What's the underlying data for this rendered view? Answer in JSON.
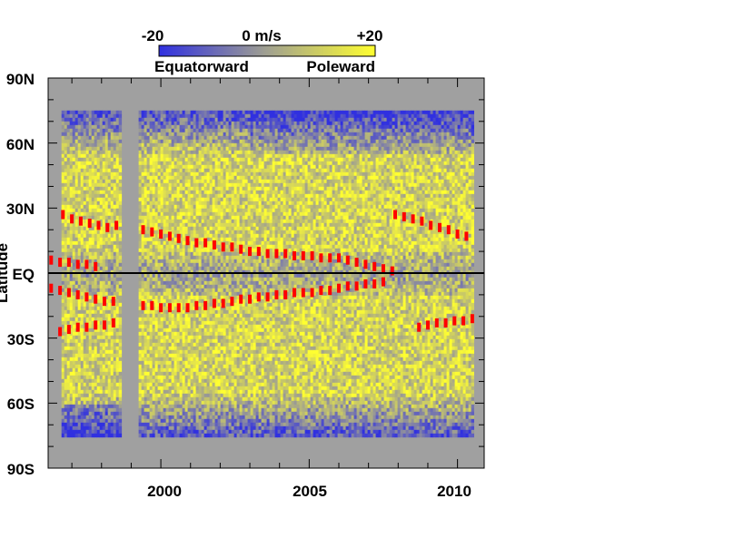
{
  "chart_data": {
    "type": "heatmap",
    "title": "",
    "xlabel": "",
    "ylabel": "Latitude",
    "xlim": [
      1996.2,
      2010.9
    ],
    "ylim": [
      -90,
      90
    ],
    "x_ticks": [
      {
        "value": 2000,
        "label": "2000"
      },
      {
        "value": 2005,
        "label": "2005"
      },
      {
        "value": 2010,
        "label": "2010"
      }
    ],
    "y_ticks": [
      {
        "value": 90,
        "label": "90N"
      },
      {
        "value": 60,
        "label": "60N"
      },
      {
        "value": 30,
        "label": "30N"
      },
      {
        "value": 0,
        "label": "EQ"
      },
      {
        "value": -30,
        "label": "30S"
      },
      {
        "value": -60,
        "label": "60S"
      },
      {
        "value": -90,
        "label": "90S"
      }
    ],
    "colorbar": {
      "min_label": "-20",
      "mid_label": "0 m/s",
      "max_label": "+20",
      "left_caption": "Equatorward",
      "right_caption": "Poleward",
      "range": [
        -20,
        20
      ],
      "colors": [
        "#3030e0",
        "#a0a090",
        "#ffff30"
      ]
    },
    "no_data_color": "#a0a0a0",
    "data_coverage": {
      "lat_range": [
        -75,
        75
      ],
      "segments": [
        [
          1996.65,
          1998.6
        ],
        [
          1999.25,
          2010.55
        ]
      ],
      "gap": [
        1998.6,
        1999.25
      ]
    },
    "series": [
      {
        "name": "",
        "color": "#ff0000",
        "marker": "dash",
        "x": [
          1996.7,
          1997.0,
          1997.3,
          1997.6,
          1997.9,
          1998.2,
          1998.5,
          1999.4,
          1999.7,
          2000.0,
          2000.3,
          2000.6,
          2000.9,
          2001.2,
          2001.5,
          2001.8,
          2002.1,
          2002.4,
          2002.7,
          2003.0,
          2003.3,
          2003.6,
          2003.9,
          2004.2,
          2004.5,
          2004.8,
          2005.1,
          2005.4,
          2005.7,
          2006.0,
          2006.3,
          2006.6,
          2006.9,
          2007.2,
          2007.5,
          2007.8
        ],
        "y": [
          27,
          25,
          24,
          23,
          22,
          21,
          22,
          20,
          19,
          18,
          17,
          16,
          15,
          14,
          14,
          13,
          12,
          12,
          11,
          10,
          10,
          9,
          9,
          9,
          8,
          8,
          8,
          7,
          7,
          7,
          6,
          5,
          4,
          3,
          2,
          1
        ]
      },
      {
        "name": "",
        "color": "#ff0000",
        "marker": "dash",
        "x": [
          1996.3,
          1996.6,
          1996.9,
          1997.2,
          1997.5,
          1997.8
        ],
        "y": [
          6,
          5,
          5,
          4,
          4,
          3
        ]
      },
      {
        "name": "",
        "color": "#ff0000",
        "marker": "dash",
        "x": [
          1996.3,
          1996.6,
          1996.9,
          1997.2,
          1997.5,
          1997.8,
          1998.1,
          1998.4,
          1999.4,
          1999.7,
          2000.0,
          2000.3,
          2000.6,
          2000.9,
          2001.2,
          2001.5,
          2001.8,
          2002.1,
          2002.4,
          2002.7,
          2003.0,
          2003.3,
          2003.6,
          2003.9,
          2004.2,
          2004.5,
          2004.8,
          2005.1,
          2005.4,
          2005.7,
          2006.0,
          2006.3,
          2006.6,
          2006.9,
          2007.2,
          2007.5
        ],
        "y": [
          -7,
          -8,
          -9,
          -10,
          -11,
          -12,
          -13,
          -13,
          -15,
          -15,
          -16,
          -16,
          -16,
          -16,
          -15,
          -15,
          -14,
          -14,
          -13,
          -12,
          -12,
          -11,
          -11,
          -10,
          -10,
          -9,
          -9,
          -9,
          -8,
          -8,
          -7,
          -6,
          -6,
          -5,
          -5,
          -4
        ]
      },
      {
        "name": "",
        "color": "#ff0000",
        "marker": "dash",
        "x": [
          1996.6,
          1996.9,
          1997.2,
          1997.5,
          1997.8,
          1998.1,
          1998.4
        ],
        "y": [
          -27,
          -26,
          -25,
          -25,
          -24,
          -24,
          -23
        ]
      },
      {
        "name": "",
        "color": "#ff0000",
        "marker": "dash",
        "x": [
          2007.9,
          2008.2,
          2008.5,
          2008.8,
          2009.1,
          2009.4,
          2009.7,
          2010.0,
          2010.3
        ],
        "y": [
          27,
          26,
          25,
          24,
          22,
          21,
          20,
          18,
          17
        ]
      },
      {
        "name": "",
        "color": "#ff0000",
        "marker": "dash",
        "x": [
          2008.7,
          2009.0,
          2009.3,
          2009.6,
          2009.9,
          2010.2,
          2010.5
        ],
        "y": [
          -25,
          -24,
          -23,
          -23,
          -22,
          -22,
          -21
        ]
      }
    ],
    "equator_line": true,
    "grid": false,
    "legend": "colorbar-top"
  }
}
